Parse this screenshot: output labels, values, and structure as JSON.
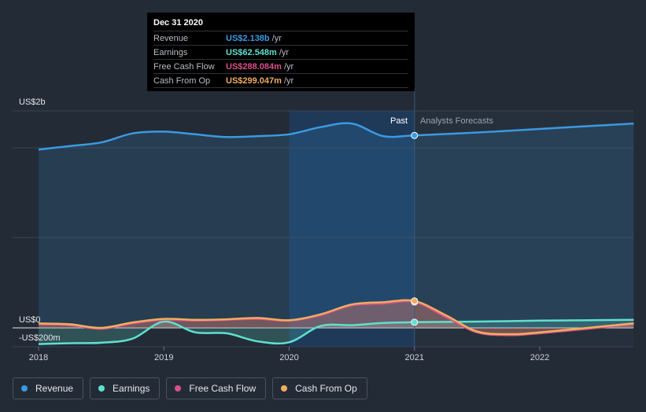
{
  "tooltip": {
    "date": "Dec 31 2020",
    "rows": [
      {
        "name": "Revenue",
        "value": "US$2.138b",
        "unit": "/yr",
        "color": "#3b9ae1"
      },
      {
        "name": "Earnings",
        "value": "US$62.548m",
        "unit": "/yr",
        "color": "#5fe0cf"
      },
      {
        "name": "Free Cash Flow",
        "value": "US$288.084m",
        "unit": "/yr",
        "color": "#d9508a"
      },
      {
        "name": "Cash From Op",
        "value": "US$299.047m",
        "unit": "/yr",
        "color": "#f0ad5f"
      }
    ]
  },
  "legend": [
    {
      "name": "Revenue",
      "color": "#3b9ae1"
    },
    {
      "name": "Earnings",
      "color": "#5fe0cf"
    },
    {
      "name": "Free Cash Flow",
      "color": "#d9508a"
    },
    {
      "name": "Cash From Op",
      "color": "#f0ad5f"
    }
  ],
  "chart_data": {
    "type": "line",
    "title": "",
    "x_unit": "year",
    "xlim": [
      2017.9,
      2022.75
    ],
    "ylim": [
      -200,
      2400
    ],
    "x_ticks": [
      2018,
      2019,
      2020,
      2021,
      2022
    ],
    "x_tick_labels": [
      "2018",
      "2019",
      "2020",
      "2021",
      "2022"
    ],
    "y_labels": [
      "US$2b",
      "US$0",
      "-US$200m"
    ],
    "past_label": "Past",
    "forecast_label": "Analysts Forecasts",
    "highlight_range": [
      2020.0,
      2021.0
    ],
    "forecast_start": 2021.0,
    "series": [
      {
        "name": "Revenue",
        "color": "#3b9ae1",
        "x": [
          2018.0,
          2018.25,
          2018.5,
          2018.75,
          2019.0,
          2019.25,
          2019.5,
          2019.75,
          2020.0,
          2020.25,
          2020.5,
          2020.75,
          2021.0,
          2021.5,
          2022.0,
          2022.75
        ],
        "y": [
          1980,
          2020,
          2060,
          2160,
          2180,
          2150,
          2120,
          2130,
          2150,
          2230,
          2270,
          2130,
          2138,
          2170,
          2210,
          2270
        ]
      },
      {
        "name": "Earnings",
        "color": "#5fe0cf",
        "x": [
          2018.0,
          2018.25,
          2018.5,
          2018.75,
          2019.0,
          2019.25,
          2019.5,
          2019.75,
          2020.0,
          2020.25,
          2020.5,
          2020.75,
          2021.0,
          2021.5,
          2022.0,
          2022.75
        ],
        "y": [
          -180,
          -170,
          -165,
          -120,
          70,
          -50,
          -60,
          -150,
          -160,
          20,
          30,
          55,
          62.548,
          70,
          80,
          90
        ]
      },
      {
        "name": "Free Cash Flow",
        "color": "#d9508a",
        "x": [
          2018.0,
          2018.25,
          2018.5,
          2018.75,
          2019.0,
          2019.25,
          2019.5,
          2019.75,
          2020.0,
          2020.25,
          2020.5,
          2020.75,
          2021.0,
          2021.25,
          2021.5,
          2021.75,
          2022.0,
          2022.75
        ],
        "y": [
          40,
          30,
          -10,
          50,
          90,
          80,
          90,
          100,
          80,
          140,
          250,
          270,
          288.084,
          120,
          -50,
          -80,
          -60,
          40
        ]
      },
      {
        "name": "Cash From Op",
        "color": "#f0ad5f",
        "x": [
          2018.0,
          2018.25,
          2018.5,
          2018.75,
          2019.0,
          2019.25,
          2019.5,
          2019.75,
          2020.0,
          2020.25,
          2020.5,
          2020.75,
          2021.0,
          2021.25,
          2021.5,
          2021.75,
          2022.0,
          2022.75
        ],
        "y": [
          50,
          40,
          0,
          60,
          100,
          90,
          95,
          110,
          85,
          150,
          260,
          285,
          299.047,
          140,
          -40,
          -70,
          -50,
          50
        ]
      }
    ]
  }
}
